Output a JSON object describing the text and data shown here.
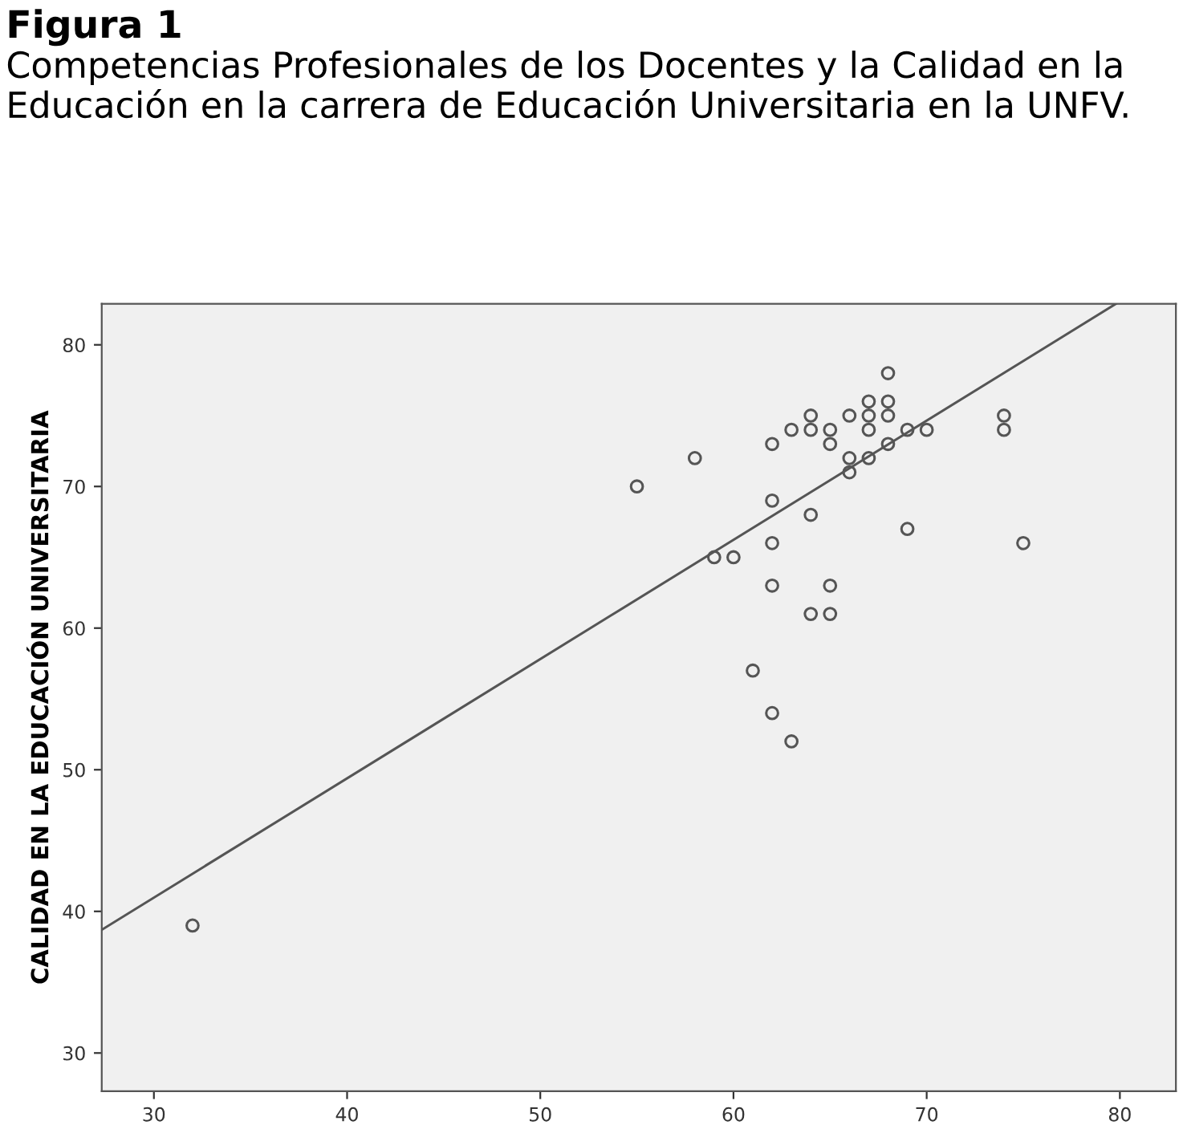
{
  "chart_data": {
    "type": "scatter",
    "title": "Figura 1",
    "subtitle": "Competencias Profesionales de los Docentes y la Calidad en la Educación en la carrera de Educación Universitaria en la UNFV.",
    "ylabel": "CALIDAD EN LA EDUCACIÓN UNIVERSITARIA",
    "marker": "circle",
    "grid": false,
    "legend": false,
    "xlim": [
      27.3,
      82.9
    ],
    "ylim": [
      27.3,
      82.9
    ],
    "xticks": [
      30,
      40,
      50,
      60,
      70,
      80
    ],
    "yticks": [
      30,
      40,
      50,
      60,
      70,
      80
    ],
    "series": [
      {
        "color": "#555555",
        "x": [
          32,
          55,
          58,
          59,
          60,
          61,
          62,
          62,
          62,
          62,
          62,
          63,
          63,
          64,
          64,
          64,
          64,
          65,
          65,
          65,
          65,
          66,
          66,
          66,
          67,
          67,
          67,
          67,
          68,
          68,
          68,
          68,
          69,
          69,
          70,
          74,
          74,
          75
        ],
        "values": [
          39,
          70,
          72,
          65,
          65,
          57,
          73,
          69,
          66,
          63,
          54,
          74,
          52,
          75,
          74,
          68,
          61,
          74,
          73,
          63,
          61,
          75,
          72,
          71,
          76,
          75,
          74,
          72,
          78,
          76,
          75,
          73,
          74,
          67,
          74,
          75,
          74,
          66
        ]
      },
      {
        "type": "line",
        "marker": "none",
        "color": "#555555",
        "x": [
          27.3,
          79.8
        ],
        "values": [
          38.7,
          82.9
        ]
      }
    ]
  }
}
